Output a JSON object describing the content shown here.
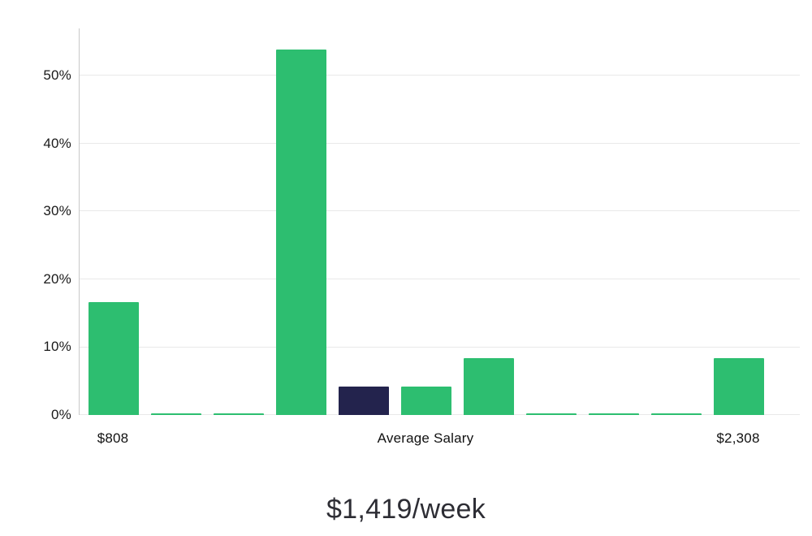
{
  "chart_data": {
    "type": "bar",
    "caption": "$1,419/week",
    "ylim": [
      0,
      57
    ],
    "grid": true,
    "legend": false,
    "yticks": [
      {
        "value": 0,
        "label": "0%"
      },
      {
        "value": 10,
        "label": "10%"
      },
      {
        "value": 20,
        "label": "20%"
      },
      {
        "value": 30,
        "label": "30%"
      },
      {
        "value": 40,
        "label": "40%"
      },
      {
        "value": 50,
        "label": "50%"
      }
    ],
    "values": [
      16.6,
      0.3,
      0.3,
      53.9,
      4.2,
      4.2,
      8.4,
      0.3,
      0.3,
      0.3,
      8.4
    ],
    "bar_colors": [
      "green",
      "green",
      "green",
      "green",
      "navy",
      "green",
      "green",
      "green",
      "green",
      "green",
      "green"
    ],
    "colors": {
      "green": "#2dbe70",
      "navy": "#23234d",
      "grid": "#e9e9e9",
      "axis": "#c9c9c9"
    },
    "x_axis_annotations": [
      {
        "label": "$808",
        "align": "bar-0"
      },
      {
        "label": "Average Salary",
        "align": "bar-5"
      },
      {
        "label": "$2,308",
        "align": "bar-10"
      }
    ]
  }
}
